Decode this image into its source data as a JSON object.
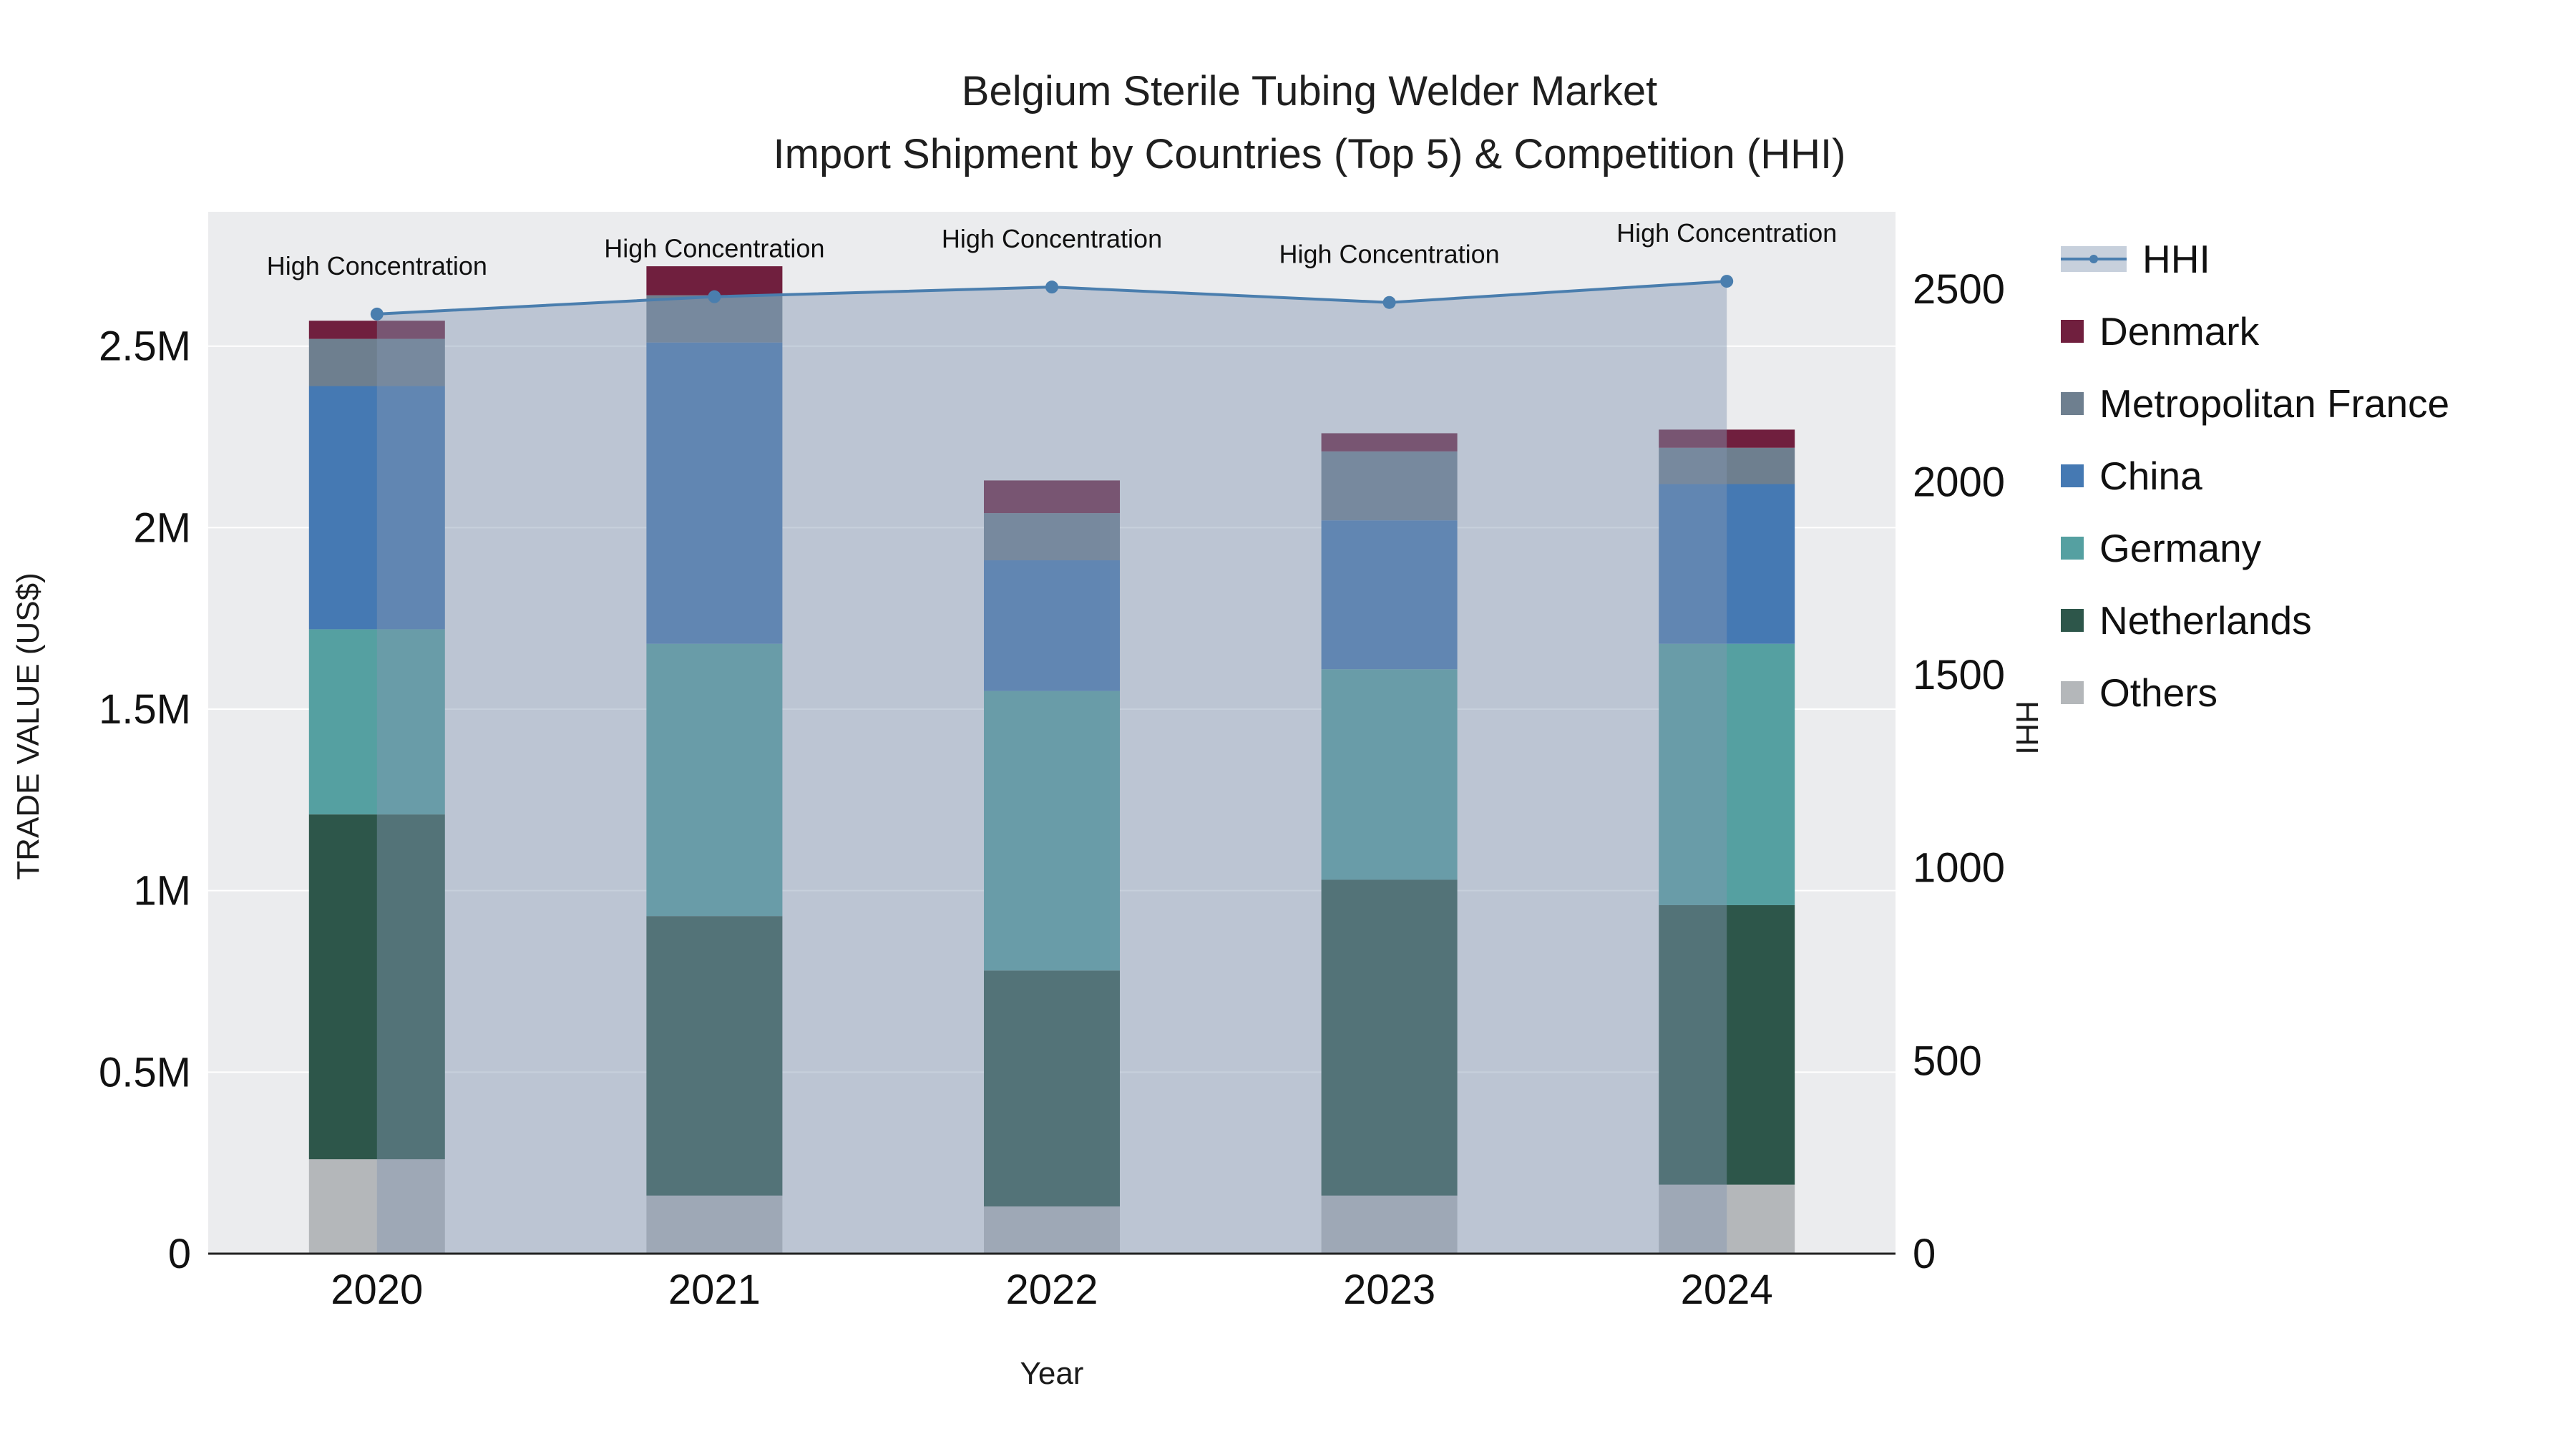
{
  "title": {
    "line1": "Belgium Sterile Tubing Welder Market",
    "line2": "Import Shipment by Countries (Top 5) & Competition (HHI)"
  },
  "chart_data": {
    "type": "bar",
    "subtype": "stacked-bars-with-line-overlay",
    "categories": [
      "2020",
      "2021",
      "2022",
      "2023",
      "2024"
    ],
    "series": [
      {
        "name": "Others",
        "color": "#b4b7ba",
        "values": [
          260000,
          160000,
          130000,
          160000,
          190000
        ]
      },
      {
        "name": "Netherlands",
        "color": "#2d564a",
        "values": [
          950000,
          770000,
          650000,
          870000,
          770000
        ]
      },
      {
        "name": "Germany",
        "color": "#55a0a1",
        "values": [
          510000,
          750000,
          770000,
          580000,
          720000
        ]
      },
      {
        "name": "China",
        "color": "#4579b3",
        "values": [
          670000,
          830000,
          360000,
          410000,
          440000
        ]
      },
      {
        "name": "Metropolitan France",
        "color": "#6e7f8f",
        "values": [
          130000,
          130000,
          130000,
          190000,
          100000
        ]
      },
      {
        "name": "Denmark",
        "color": "#701f3e",
        "values": [
          50000,
          80000,
          90000,
          50000,
          50000
        ]
      }
    ],
    "line_series": {
      "name": "HHI",
      "color": "#4a7eae",
      "fill_color": "rgba(130,150,178,0.45)",
      "values": [
        2435,
        2480,
        2505,
        2465,
        2520
      ]
    },
    "point_labels": [
      "High Concentration",
      "High Concentration",
      "High Concentration",
      "High Concentration",
      "High Concentration"
    ],
    "title": "Belgium Sterile Tubing Welder Market Import Shipment by Countries (Top 5) & Competition (HHI)",
    "xlabel": "Year",
    "ylabel": "TRADE VALUE (US$)",
    "y2label": "HHI",
    "ylim": [
      0,
      2870000
    ],
    "y2lim": [
      0,
      2700
    ],
    "y_ticks": {
      "values": [
        0,
        500000,
        1000000,
        1500000,
        2000000,
        2500000
      ],
      "labels": [
        "0",
        "0.5M",
        "1M",
        "1.5M",
        "2M",
        "2.5M"
      ]
    },
    "y2_ticks": {
      "values": [
        0,
        500,
        1000,
        1500,
        2000,
        2500
      ],
      "labels": [
        "0",
        "500",
        "1000",
        "1500",
        "2000",
        "2500"
      ]
    },
    "grid": true,
    "legend_position": "right",
    "plot_background": "#ebecee",
    "grid_color": "#ffffff"
  },
  "legend": {
    "items": [
      {
        "label": "HHI",
        "kind": "line",
        "color": "#4a7eae",
        "fill": "rgba(130,150,178,0.45)"
      },
      {
        "label": "Denmark",
        "kind": "square",
        "color": "#701f3e"
      },
      {
        "label": "Metropolitan France",
        "kind": "square",
        "color": "#6e7f8f"
      },
      {
        "label": "China",
        "kind": "square",
        "color": "#4579b3"
      },
      {
        "label": "Germany",
        "kind": "square",
        "color": "#55a0a1"
      },
      {
        "label": "Netherlands",
        "kind": "square",
        "color": "#2d564a"
      },
      {
        "label": "Others",
        "kind": "square",
        "color": "#b4b7ba"
      }
    ]
  }
}
